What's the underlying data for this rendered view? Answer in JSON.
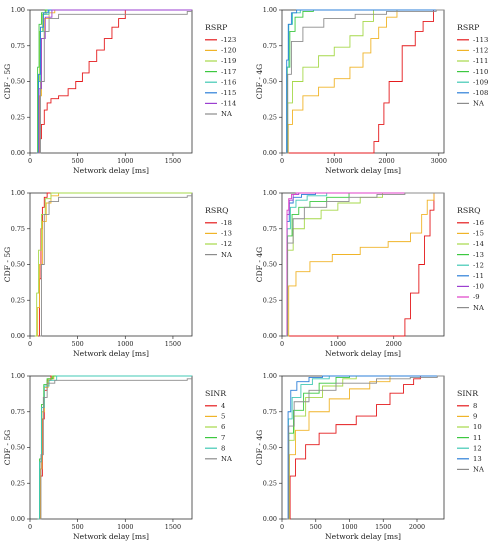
{
  "chart_data": [
    {
      "type": "line",
      "xlabel": "Network delay [ms]",
      "ylabel": "CDF - 5G",
      "xlim": [
        0,
        1700
      ],
      "ylim": [
        0,
        1
      ],
      "xticks": [
        0,
        500,
        1000,
        1500
      ],
      "yticks": [
        0.0,
        0.25,
        0.5,
        0.75,
        1.0
      ],
      "grid": false,
      "legend": {
        "title": "RSRP",
        "position": "right"
      },
      "series": [
        {
          "name": "-123",
          "color": "#e41a1c",
          "x": [
            90,
            100,
            120,
            150,
            180,
            220,
            300,
            400,
            480,
            550,
            620,
            700,
            780,
            860,
            930,
            1000
          ],
          "y": [
            0.0,
            0.1,
            0.2,
            0.3,
            0.35,
            0.38,
            0.4,
            0.45,
            0.5,
            0.56,
            0.64,
            0.72,
            0.8,
            0.88,
            0.94,
            1.0
          ]
        },
        {
          "name": "-120",
          "color": "#f0b428",
          "x": [
            80,
            100,
            120,
            150,
            200,
            260
          ],
          "y": [
            0.0,
            0.4,
            0.8,
            0.94,
            0.98,
            1.0
          ]
        },
        {
          "name": "-119",
          "color": "#a6d84a",
          "x": [
            70,
            85,
            100,
            130,
            170
          ],
          "y": [
            0.0,
            0.5,
            0.85,
            0.97,
            1.0
          ]
        },
        {
          "name": "-117",
          "color": "#3cc840",
          "x": [
            70,
            80,
            95,
            120,
            160
          ],
          "y": [
            0.0,
            0.6,
            0.9,
            0.98,
            1.0
          ]
        },
        {
          "name": "-116",
          "color": "#40c8b4",
          "x": [
            70,
            90,
            110,
            140,
            200
          ],
          "y": [
            0.0,
            0.5,
            0.85,
            0.97,
            1.0
          ]
        },
        {
          "name": "-115",
          "color": "#2b7fd8",
          "x": [
            70,
            90,
            110,
            140,
            190
          ],
          "y": [
            0.0,
            0.55,
            0.88,
            0.98,
            1.0
          ]
        },
        {
          "name": "-114",
          "color": "#9b3fd0",
          "x": [
            75,
            95,
            120,
            160,
            230
          ],
          "y": [
            0.0,
            0.45,
            0.8,
            0.95,
            1.0
          ]
        },
        {
          "name": "NA",
          "color": "#8c8c8c",
          "x": [
            80,
            110,
            150,
            200,
            300,
            1650
          ],
          "y": [
            0.0,
            0.5,
            0.85,
            0.94,
            0.97,
            0.99
          ]
        }
      ]
    },
    {
      "type": "line",
      "xlabel": "Network delay [ms]",
      "ylabel": "CDF - 4G",
      "xlim": [
        0,
        3100
      ],
      "ylim": [
        0,
        1
      ],
      "xticks": [
        0,
        1000,
        2000,
        3000
      ],
      "yticks": [
        0.0,
        0.25,
        0.5,
        0.75,
        1.0
      ],
      "grid": false,
      "legend": {
        "title": "RSRP",
        "position": "right"
      },
      "series": [
        {
          "name": "-113",
          "color": "#e41a1c",
          "x": [
            100,
            1700,
            1760,
            1850,
            1950,
            2050,
            2300,
            2550,
            2700,
            2900
          ],
          "y": [
            0.0,
            0.0,
            0.08,
            0.2,
            0.35,
            0.5,
            0.75,
            0.85,
            0.92,
            1.0
          ]
        },
        {
          "name": "-112",
          "color": "#f0b428",
          "x": [
            70,
            120,
            200,
            400,
            700,
            1000,
            1300,
            1550,
            1700,
            1850,
            2000,
            2200
          ],
          "y": [
            0.0,
            0.2,
            0.3,
            0.4,
            0.46,
            0.52,
            0.6,
            0.7,
            0.8,
            0.88,
            0.95,
            1.0
          ]
        },
        {
          "name": "-111",
          "color": "#a6d84a",
          "x": [
            70,
            110,
            200,
            400,
            700,
            1000,
            1300,
            1550,
            1750
          ],
          "y": [
            0.0,
            0.35,
            0.5,
            0.6,
            0.68,
            0.74,
            0.82,
            0.92,
            1.0
          ]
        },
        {
          "name": "-110",
          "color": "#3cc840",
          "x": [
            70,
            100,
            150,
            250,
            400,
            600
          ],
          "y": [
            0.0,
            0.6,
            0.85,
            0.95,
            0.99,
            1.0
          ]
        },
        {
          "name": "-109",
          "color": "#40c8b4",
          "x": [
            70,
            90,
            130,
            200,
            350
          ],
          "y": [
            0.0,
            0.6,
            0.9,
            0.98,
            1.0
          ]
        },
        {
          "name": "-108",
          "color": "#2b7fd8",
          "x": [
            70,
            90,
            120,
            180,
            280
          ],
          "y": [
            0.0,
            0.65,
            0.9,
            0.98,
            1.0
          ]
        },
        {
          "name": "NA",
          "color": "#8c8c8c",
          "x": [
            70,
            110,
            180,
            400,
            800,
            1400,
            2000,
            2950
          ],
          "y": [
            0.0,
            0.55,
            0.78,
            0.88,
            0.94,
            0.97,
            0.99,
            1.0
          ]
        }
      ]
    },
    {
      "type": "line",
      "xlabel": "Network delay [ms]",
      "ylabel": "CDF - 5G",
      "xlim": [
        0,
        1700
      ],
      "ylim": [
        0,
        1
      ],
      "xticks": [
        0,
        500,
        1000,
        1500
      ],
      "yticks": [
        0.0,
        0.25,
        0.5,
        0.75,
        1.0
      ],
      "grid": false,
      "legend": {
        "title": "RSRQ",
        "position": "right"
      },
      "series": [
        {
          "name": "-18",
          "color": "#e41a1c",
          "x": [
            90,
            100,
            115,
            130,
            150,
            180
          ],
          "y": [
            0.0,
            0.4,
            0.75,
            0.9,
            0.97,
            1.0
          ]
        },
        {
          "name": "-13",
          "color": "#f0b428",
          "x": [
            60,
            80,
            100,
            130,
            170,
            220,
            300
          ],
          "y": [
            0.0,
            0.2,
            0.5,
            0.8,
            0.93,
            0.98,
            1.0
          ]
        },
        {
          "name": "-12",
          "color": "#a6d84a",
          "x": [
            50,
            70,
            90,
            120,
            160,
            220
          ],
          "y": [
            0.0,
            0.3,
            0.6,
            0.85,
            0.96,
            1.0
          ]
        },
        {
          "name": "NA",
          "color": "#8c8c8c",
          "x": [
            100,
            120,
            150,
            200,
            300,
            1650
          ],
          "y": [
            0.0,
            0.5,
            0.85,
            0.94,
            0.97,
            0.98
          ]
        }
      ]
    },
    {
      "type": "line",
      "xlabel": "Network delay [ms]",
      "ylabel": "CDF - 4G",
      "xlim": [
        0,
        2900
      ],
      "ylim": [
        0,
        1
      ],
      "xticks": [
        0,
        1000,
        2000
      ],
      "yticks": [
        0.0,
        0.25,
        0.5,
        0.75,
        1.0
      ],
      "grid": false,
      "legend": {
        "title": "RSRQ",
        "position": "right"
      },
      "series": [
        {
          "name": "-16",
          "color": "#e41a1c",
          "x": [
            100,
            2150,
            2200,
            2300,
            2450,
            2550,
            2650,
            2720
          ],
          "y": [
            0.0,
            0.0,
            0.12,
            0.3,
            0.5,
            0.7,
            0.88,
            1.0
          ]
        },
        {
          "name": "-15",
          "color": "#f0b428",
          "x": [
            70,
            120,
            250,
            500,
            900,
            1400,
            1900,
            2300,
            2500,
            2600,
            2720
          ],
          "y": [
            0.0,
            0.35,
            0.45,
            0.52,
            0.57,
            0.62,
            0.66,
            0.72,
            0.85,
            0.95,
            1.0
          ]
        },
        {
          "name": "-14",
          "color": "#a6d84a",
          "x": [
            70,
            100,
            200,
            400,
            700,
            1000,
            1400,
            1800
          ],
          "y": [
            0.0,
            0.6,
            0.75,
            0.82,
            0.88,
            0.93,
            0.97,
            1.0
          ]
        },
        {
          "name": "-13",
          "color": "#3cc840",
          "x": [
            70,
            100,
            180,
            300,
            500,
            800,
            1200
          ],
          "y": [
            0.0,
            0.7,
            0.85,
            0.9,
            0.94,
            0.97,
            1.0
          ]
        },
        {
          "name": "-12",
          "color": "#40c8b4",
          "x": [
            70,
            95,
            150,
            250,
            450,
            800
          ],
          "y": [
            0.0,
            0.75,
            0.9,
            0.95,
            0.98,
            1.0
          ]
        },
        {
          "name": "-11",
          "color": "#2b7fd8",
          "x": [
            70,
            90,
            130,
            200,
            350,
            600
          ],
          "y": [
            0.0,
            0.8,
            0.93,
            0.97,
            0.99,
            1.0
          ]
        },
        {
          "name": "-10",
          "color": "#9b3fd0",
          "x": [
            70,
            90,
            130,
            200,
            300
          ],
          "y": [
            0.0,
            0.85,
            0.95,
            0.99,
            1.0
          ]
        },
        {
          "name": "-9",
          "color": "#e040c8",
          "x": [
            70,
            90,
            120,
            170,
            250
          ],
          "y": [
            0.0,
            0.88,
            0.96,
            0.99,
            1.0
          ]
        },
        {
          "name": "NA",
          "color": "#8c8c8c",
          "x": [
            70,
            100,
            200,
            400,
            800,
            1200,
            1700,
            2200
          ],
          "y": [
            0.0,
            0.65,
            0.82,
            0.9,
            0.94,
            0.97,
            0.99,
            1.0
          ]
        }
      ]
    },
    {
      "type": "line",
      "xlabel": "Network delay [ms]",
      "ylabel": "CDF - 5G",
      "xlim": [
        0,
        1700
      ],
      "ylim": [
        0,
        1
      ],
      "xticks": [
        0,
        500,
        1000,
        1500
      ],
      "yticks": [
        0.0,
        0.25,
        0.5,
        0.75,
        1.0
      ],
      "grid": false,
      "legend": {
        "title": "SINR",
        "position": "right"
      },
      "series": [
        {
          "name": "4",
          "color": "#e41a1c",
          "x": [
            90,
            110,
            130,
            150,
            180,
            220
          ],
          "y": [
            0.0,
            0.3,
            0.7,
            0.9,
            0.97,
            1.0
          ]
        },
        {
          "name": "5",
          "color": "#f0b428",
          "x": [
            85,
            105,
            125,
            150,
            190,
            250
          ],
          "y": [
            0.0,
            0.35,
            0.75,
            0.92,
            0.98,
            1.0
          ]
        },
        {
          "name": "6",
          "color": "#a6d84a",
          "x": [
            80,
            100,
            120,
            145,
            180,
            230
          ],
          "y": [
            0.0,
            0.4,
            0.78,
            0.93,
            0.98,
            1.0
          ]
        },
        {
          "name": "7",
          "color": "#3cc840",
          "x": [
            80,
            100,
            120,
            145,
            180,
            240
          ],
          "y": [
            0.0,
            0.42,
            0.8,
            0.94,
            0.98,
            1.0
          ]
        },
        {
          "name": "8",
          "color": "#40c8b4",
          "x": [
            80,
            100,
            120,
            150,
            200,
            280
          ],
          "y": [
            0.0,
            0.4,
            0.78,
            0.93,
            0.97,
            1.0
          ]
        },
        {
          "name": "NA",
          "color": "#8c8c8c",
          "x": [
            90,
            115,
            140,
            180,
            260,
            1650
          ],
          "y": [
            0.0,
            0.45,
            0.85,
            0.95,
            0.97,
            0.98
          ]
        }
      ]
    },
    {
      "type": "line",
      "xlabel": "Network delay [ms]",
      "ylabel": "CDF - 4G",
      "xlim": [
        0,
        2400
      ],
      "ylim": [
        0,
        1
      ],
      "xticks": [
        0,
        500,
        1000,
        1500,
        2000
      ],
      "yticks": [
        0.0,
        0.25,
        0.5,
        0.75,
        1.0
      ],
      "grid": false,
      "legend": {
        "title": "SINR",
        "position": "right"
      },
      "series": [
        {
          "name": "8",
          "color": "#e41a1c",
          "x": [
            70,
            120,
            200,
            350,
            550,
            800,
            1100,
            1400,
            1600,
            1800,
            1950,
            2050
          ],
          "y": [
            0.0,
            0.3,
            0.42,
            0.52,
            0.6,
            0.66,
            0.72,
            0.8,
            0.88,
            0.94,
            0.98,
            1.0
          ]
        },
        {
          "name": "9",
          "color": "#f0b428",
          "x": [
            70,
            110,
            200,
            400,
            700,
            1000,
            1300,
            1600
          ],
          "y": [
            0.0,
            0.45,
            0.62,
            0.75,
            0.84,
            0.91,
            0.96,
            1.0
          ]
        },
        {
          "name": "10",
          "color": "#a6d84a",
          "x": [
            70,
            100,
            180,
            350,
            600,
            900,
            1100
          ],
          "y": [
            0.0,
            0.55,
            0.72,
            0.85,
            0.93,
            0.98,
            1.0
          ]
        },
        {
          "name": "11",
          "color": "#3cc840",
          "x": [
            70,
            100,
            170,
            320,
            550,
            800,
            1000
          ],
          "y": [
            0.0,
            0.6,
            0.76,
            0.88,
            0.95,
            0.99,
            1.0
          ]
        },
        {
          "name": "12",
          "color": "#40c8b4",
          "x": [
            70,
            95,
            150,
            280,
            450,
            700
          ],
          "y": [
            0.0,
            0.7,
            0.85,
            0.94,
            0.98,
            1.0
          ]
        },
        {
          "name": "13",
          "color": "#2b7fd8",
          "x": [
            70,
            90,
            130,
            220,
            400,
            600
          ],
          "y": [
            0.0,
            0.75,
            0.9,
            0.96,
            0.99,
            1.0
          ]
        },
        {
          "name": "NA",
          "color": "#8c8c8c",
          "x": [
            70,
            100,
            180,
            400,
            800,
            1400,
            1900,
            2300
          ],
          "y": [
            0.0,
            0.65,
            0.82,
            0.9,
            0.95,
            0.98,
            0.99,
            1.0
          ]
        }
      ]
    }
  ]
}
